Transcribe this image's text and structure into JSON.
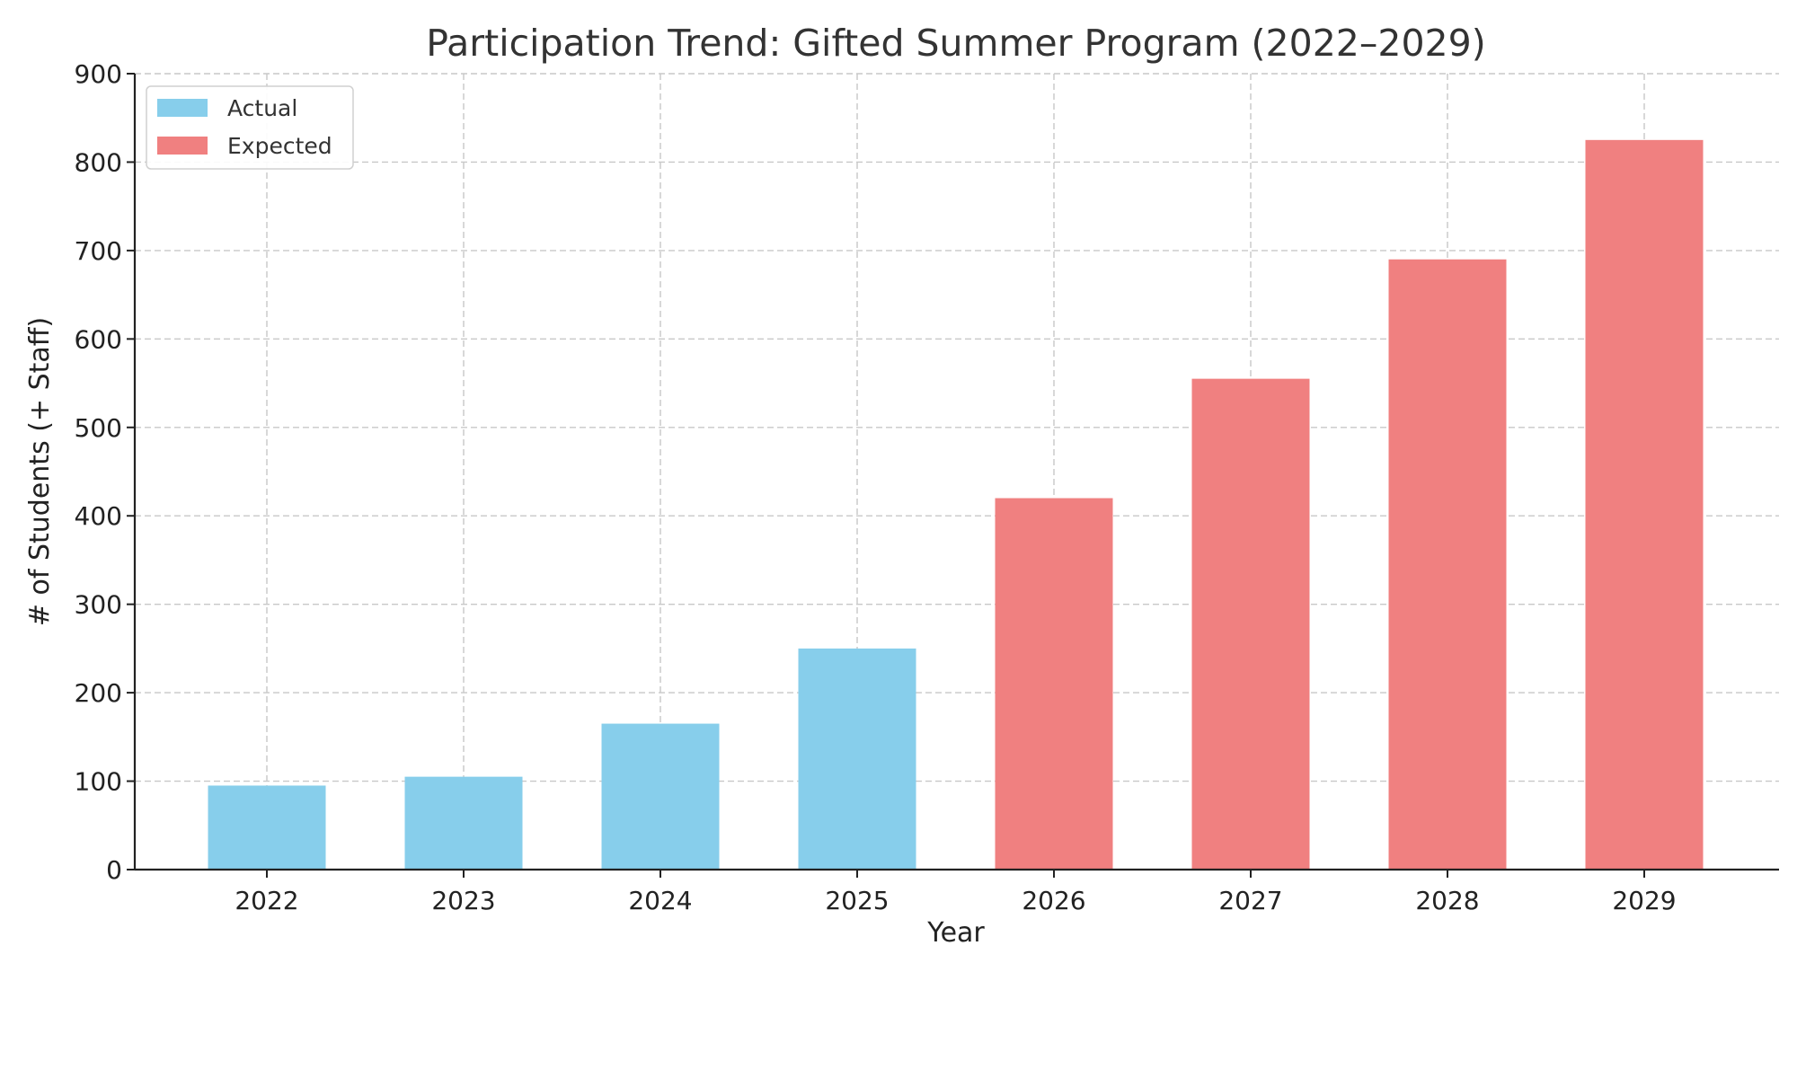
{
  "chart_data": {
    "type": "bar",
    "title": "Participation Trend: Gifted Summer Program (2022–2029)",
    "xlabel": "Year",
    "ylabel": "# of Students (+ Staff)",
    "categories": [
      "2022",
      "2023",
      "2024",
      "2025",
      "2026",
      "2027",
      "2028",
      "2029"
    ],
    "series": [
      {
        "name": "Actual",
        "color": "#87CEEB",
        "values": [
          95,
          105,
          165,
          250,
          null,
          null,
          null,
          null
        ]
      },
      {
        "name": "Expected",
        "color": "#F08080",
        "values": [
          null,
          null,
          null,
          null,
          420,
          555,
          690,
          825
        ]
      }
    ],
    "ylim": [
      0,
      900
    ],
    "yticks": [
      0,
      100,
      200,
      300,
      400,
      500,
      600,
      700,
      800,
      900
    ],
    "grid": true,
    "grid_style": "dashed",
    "legend_position": "top-left"
  }
}
